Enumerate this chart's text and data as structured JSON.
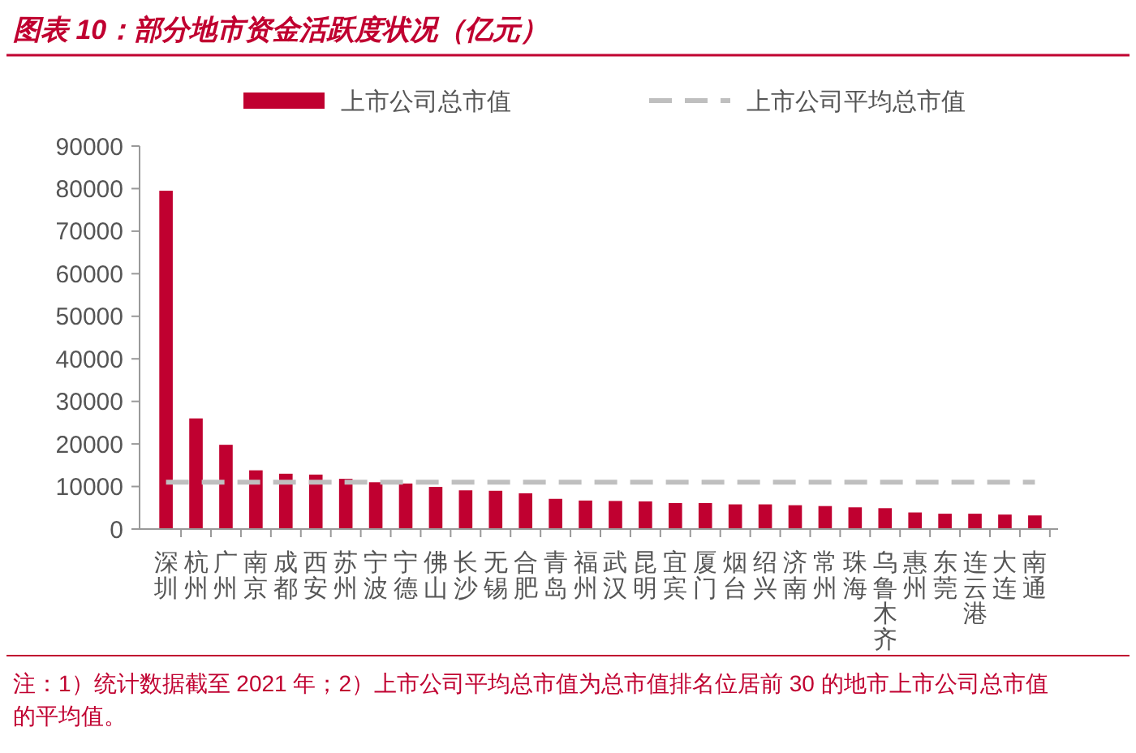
{
  "chart_data": {
    "type": "bar",
    "title": "图表 10：部分地市资金活跃度状况（亿元）",
    "categories": [
      "深圳",
      "杭州",
      "广州",
      "南京",
      "成都",
      "西安",
      "苏州",
      "宁波",
      "宁德",
      "佛山",
      "长沙",
      "无锡",
      "合肥",
      "青岛",
      "福州",
      "武汉",
      "昆明",
      "宜宾",
      "厦门",
      "烟台",
      "绍兴",
      "济南",
      "常州",
      "珠海",
      "乌鲁木齐",
      "惠州",
      "东莞",
      "连云港",
      "大连",
      "南通"
    ],
    "series": [
      {
        "name": "上市公司总市值",
        "color": "#c00030",
        "values": [
          79500,
          26000,
          19800,
          13800,
          13000,
          12800,
          11800,
          11000,
          10700,
          9900,
          9100,
          9000,
          8400,
          7100,
          6700,
          6600,
          6500,
          6100,
          6100,
          5800,
          5800,
          5600,
          5400,
          5100,
          4900,
          3900,
          3600,
          3600,
          3400,
          3200
        ]
      },
      {
        "name": "上市公司平均总市值",
        "type": "line",
        "color": "#bfbfbf",
        "line_style": "dashed",
        "marker": "none",
        "values": [
          11000,
          11000,
          11000,
          11000,
          11000,
          11000,
          11000,
          11000,
          11000,
          11000,
          11000,
          11000,
          11000,
          11000,
          11000,
          11000,
          11000,
          11000,
          11000,
          11000,
          11000,
          11000,
          11000,
          11000,
          11000,
          11000,
          11000,
          11000,
          11000,
          11000
        ]
      }
    ],
    "ylim": [
      0,
      90000
    ],
    "yticks": [
      0,
      10000,
      20000,
      30000,
      40000,
      50000,
      60000,
      70000,
      80000,
      90000
    ],
    "grid": false,
    "legend": "top",
    "annotations": [
      "注：1）统计数据截至 2021 年；2）上市公司平均总市值为总市值排名位居前 30 的地市上市公司总市值的平均值。"
    ]
  }
}
